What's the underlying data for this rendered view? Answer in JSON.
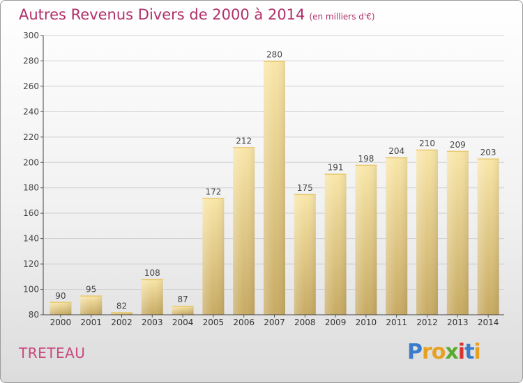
{
  "title": "Autres Revenus Divers de 2000 à 2014",
  "unit": "(en milliers d'€)",
  "commune": "TRETEAU",
  "logo": {
    "letters": [
      "P",
      "r",
      "o",
      "x",
      "i",
      "t",
      "i"
    ],
    "colors": [
      "#3a7cc9",
      "#e8a020",
      "#e8a020",
      "#5aaa2e",
      "#d8342e",
      "#3a7cc9",
      "#e8a020"
    ]
  },
  "colors": {
    "title": "#b0306a",
    "bar_light": "#f8e3a3",
    "bar_dark": "#c9ad68",
    "grid": "#cccccc"
  },
  "chart_data": {
    "type": "bar",
    "title": "Autres Revenus Divers de 2000 à 2014",
    "categories": [
      "2000",
      "2001",
      "2002",
      "2003",
      "2004",
      "2005",
      "2006",
      "2007",
      "2008",
      "2009",
      "2010",
      "2011",
      "2012",
      "2013",
      "2014"
    ],
    "values": [
      90,
      95,
      82,
      108,
      87,
      172,
      212,
      280,
      175,
      191,
      198,
      204,
      210,
      209,
      203
    ],
    "ylim": [
      80,
      300
    ],
    "yticks": [
      80,
      100,
      120,
      140,
      160,
      180,
      200,
      220,
      240,
      260,
      280,
      300
    ],
    "grid": true
  }
}
